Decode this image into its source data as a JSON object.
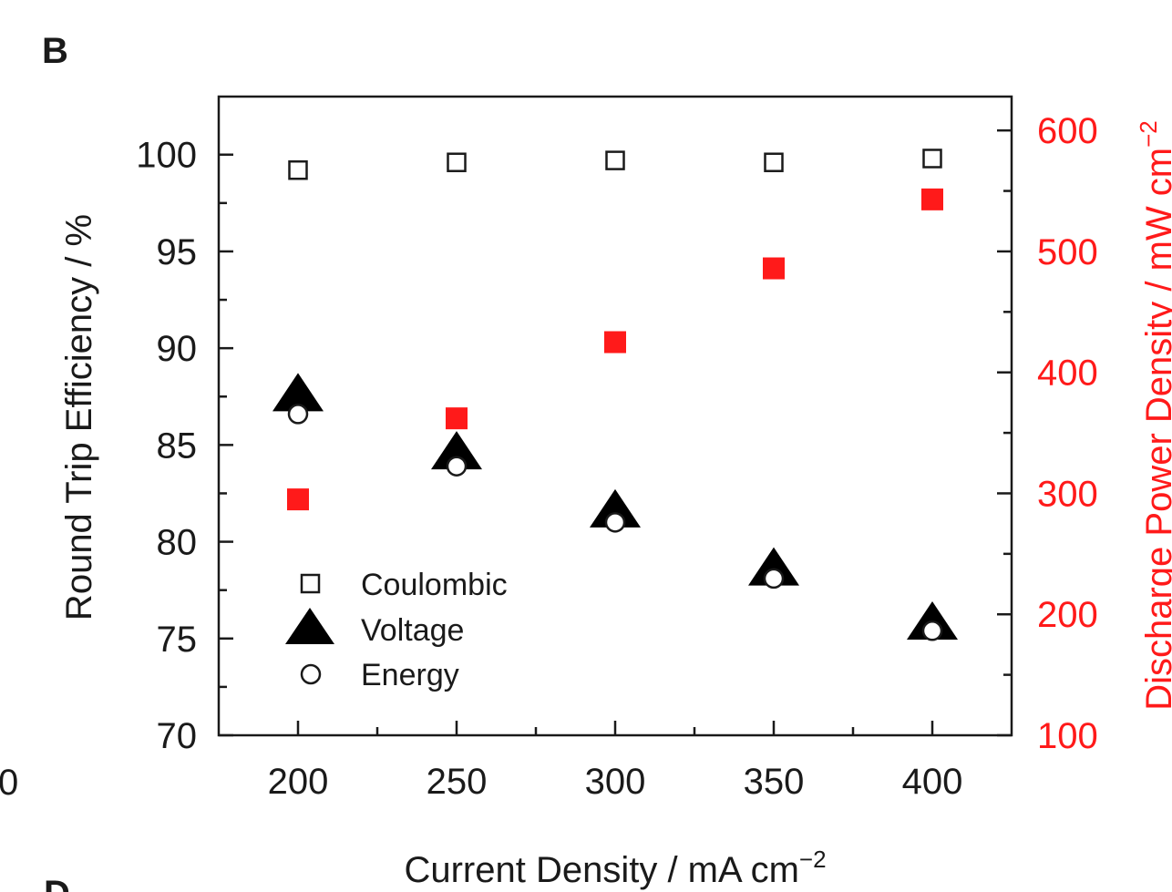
{
  "panel_label": "B",
  "edge_fragments": {
    "left": "0",
    "bottom": "D"
  },
  "colors": {
    "axis": "#1a1a1a",
    "accent": "#ff1a1a"
  },
  "chart_data": {
    "type": "scatter",
    "x": [
      200,
      250,
      300,
      350,
      400
    ],
    "xlabel": "Current Density / mA cm",
    "xlabel_sup": "−2",
    "xlim": [
      175,
      425
    ],
    "xticks": [
      "200",
      "250",
      "300",
      "350",
      "400"
    ],
    "ylabel_left": "Round Trip Efficiency / %",
    "ylim_left": [
      70,
      103
    ],
    "yticks_left": [
      "70",
      "75",
      "80",
      "85",
      "90",
      "95",
      "100"
    ],
    "ylabel_right": "Discharge Power Density / mW cm",
    "ylabel_right_sup": "−2",
    "ylim_right": [
      100,
      628
    ],
    "yticks_right": [
      "100",
      "200",
      "300",
      "400",
      "500",
      "600"
    ],
    "grid": false,
    "legend_position": "bottom-left",
    "series": [
      {
        "name": "Coulombic",
        "axis": "left",
        "marker": "open-square",
        "color": "#1a1a1a",
        "values": [
          99.2,
          99.6,
          99.7,
          99.6,
          99.8
        ]
      },
      {
        "name": "Voltage",
        "axis": "left",
        "marker": "filled-triangle",
        "color": "#000000",
        "values": [
          87.4,
          84.4,
          81.4,
          78.4,
          75.6
        ]
      },
      {
        "name": "Energy",
        "axis": "left",
        "marker": "open-circle",
        "color": "#1a1a1a",
        "values": [
          86.6,
          83.9,
          81.0,
          78.1,
          75.4
        ]
      },
      {
        "axis": "right",
        "marker": "filled-square",
        "color": "#ff1a1a",
        "values": [
          295,
          362,
          425,
          486,
          543
        ]
      }
    ]
  }
}
